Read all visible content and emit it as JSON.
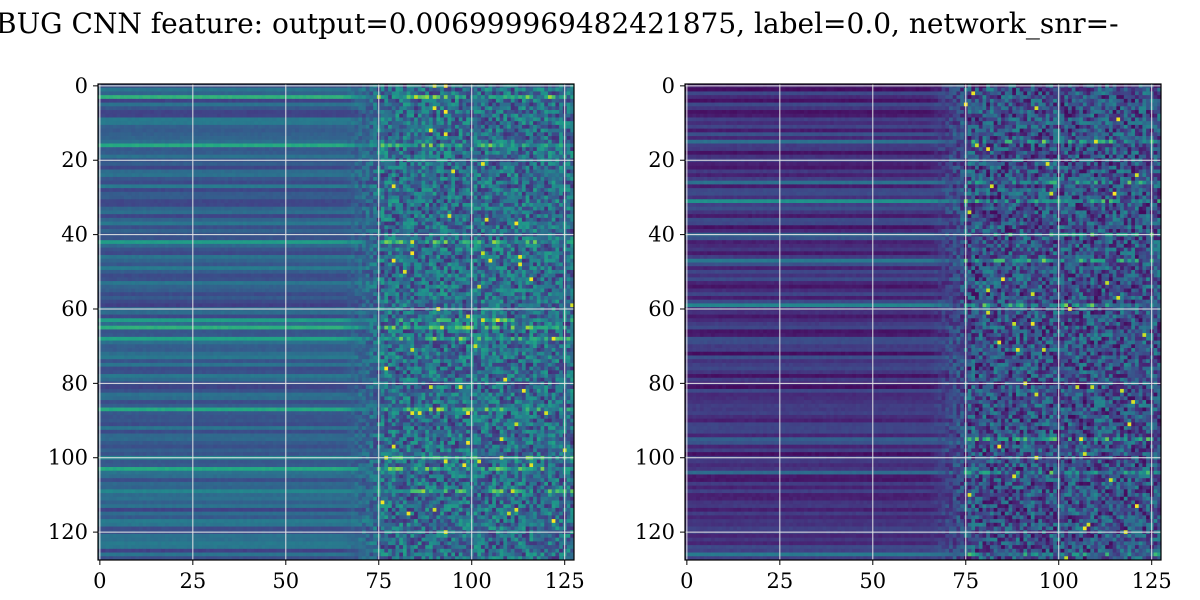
{
  "title": "BUG CNN feature: output=0.006999969482421875, label=0.0, network_snr=-",
  "colors": {
    "background": "#ffffff",
    "grid": "#e6e6e6",
    "axis": "#000000",
    "colormap": "viridis"
  },
  "chart_data": [
    {
      "type": "heatmap",
      "rows": 128,
      "cols": 128,
      "xlim": [
        0,
        127
      ],
      "ylim": [
        0,
        127
      ],
      "x_ticks": [
        0,
        25,
        50,
        75,
        100,
        125
      ],
      "y_ticks": [
        0,
        20,
        40,
        60,
        80,
        100,
        120
      ],
      "x_tick_labels": [
        "0",
        "25",
        "50",
        "75",
        "100",
        "125"
      ],
      "y_tick_labels": [
        "0",
        "20",
        "40",
        "60",
        "80",
        "100",
        "120"
      ],
      "grid": true,
      "colormap": "viridis",
      "description_values": {
        "smooth_region_cols": [
          0,
          75
        ],
        "noisy_region_cols": [
          75,
          127
        ],
        "bright_rows": [
          3,
          16,
          42,
          63,
          65,
          68,
          87,
          100,
          103,
          109
        ],
        "mean_level_left": 0.3,
        "mean_level_right": 0.35
      }
    },
    {
      "type": "heatmap",
      "rows": 128,
      "cols": 128,
      "xlim": [
        0,
        127
      ],
      "ylim": [
        0,
        127
      ],
      "x_ticks": [
        0,
        25,
        50,
        75,
        100,
        125
      ],
      "y_ticks": [
        0,
        20,
        40,
        60,
        80,
        100,
        120
      ],
      "x_tick_labels": [
        "0",
        "25",
        "50",
        "75",
        "100",
        "125"
      ],
      "y_tick_labels": [
        "0",
        "20",
        "40",
        "60",
        "80",
        "100",
        "120"
      ],
      "grid": true,
      "colormap": "viridis",
      "description_values": {
        "smooth_region_cols": [
          0,
          75
        ],
        "noisy_region_cols": [
          75,
          127
        ],
        "bright_rows": [
          15,
          26,
          31,
          40,
          47,
          59,
          95,
          104,
          126
        ],
        "mean_level_left": 0.15,
        "mean_level_right": 0.25
      }
    }
  ]
}
